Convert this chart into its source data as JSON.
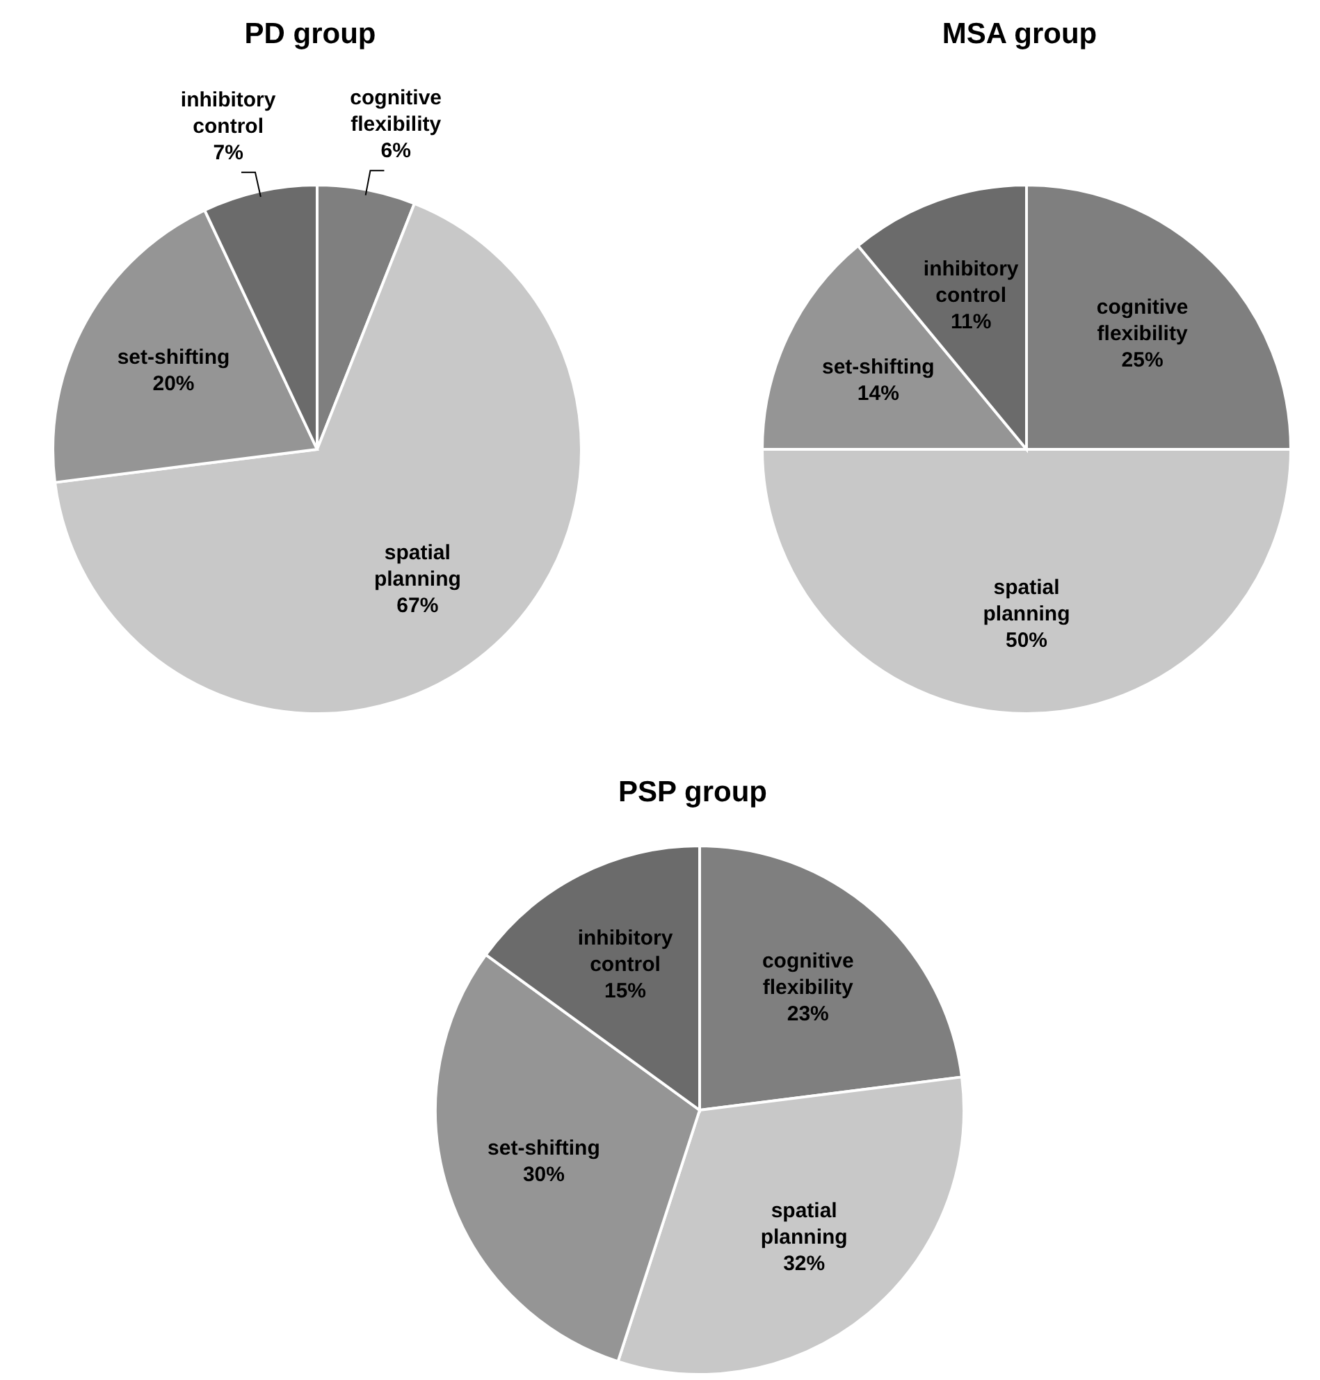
{
  "chart_data": [
    {
      "type": "pie",
      "title": "PD group",
      "categories": [
        "cognitive flexibility",
        "spatial planning",
        "set-shifting",
        "inhibitory control"
      ],
      "values": [
        6,
        67,
        20,
        7
      ],
      "value_labels": [
        "6%",
        "67%",
        "20%",
        "7%"
      ],
      "colors": [
        "#7f7f7f",
        "#c8c8c8",
        "#959595",
        "#6b6b6b"
      ],
      "legend": false
    },
    {
      "type": "pie",
      "title": "MSA group",
      "categories": [
        "cognitive flexibility",
        "spatial planning",
        "set-shifting",
        "inhibitory control"
      ],
      "values": [
        25,
        50,
        14,
        11
      ],
      "value_labels": [
        "25%",
        "50%",
        "14%",
        "11%"
      ],
      "colors": [
        "#7f7f7f",
        "#c8c8c8",
        "#959595",
        "#6b6b6b"
      ],
      "legend": false
    },
    {
      "type": "pie",
      "title": "PSP group",
      "categories": [
        "cognitive flexibility",
        "spatial planning",
        "set-shifting",
        "inhibitory control"
      ],
      "values": [
        23,
        32,
        30,
        15
      ],
      "value_labels": [
        "23%",
        "32%",
        "30%",
        "15%"
      ],
      "colors": [
        "#7f7f7f",
        "#c8c8c8",
        "#959595",
        "#6b6b6b"
      ],
      "legend": false
    }
  ]
}
